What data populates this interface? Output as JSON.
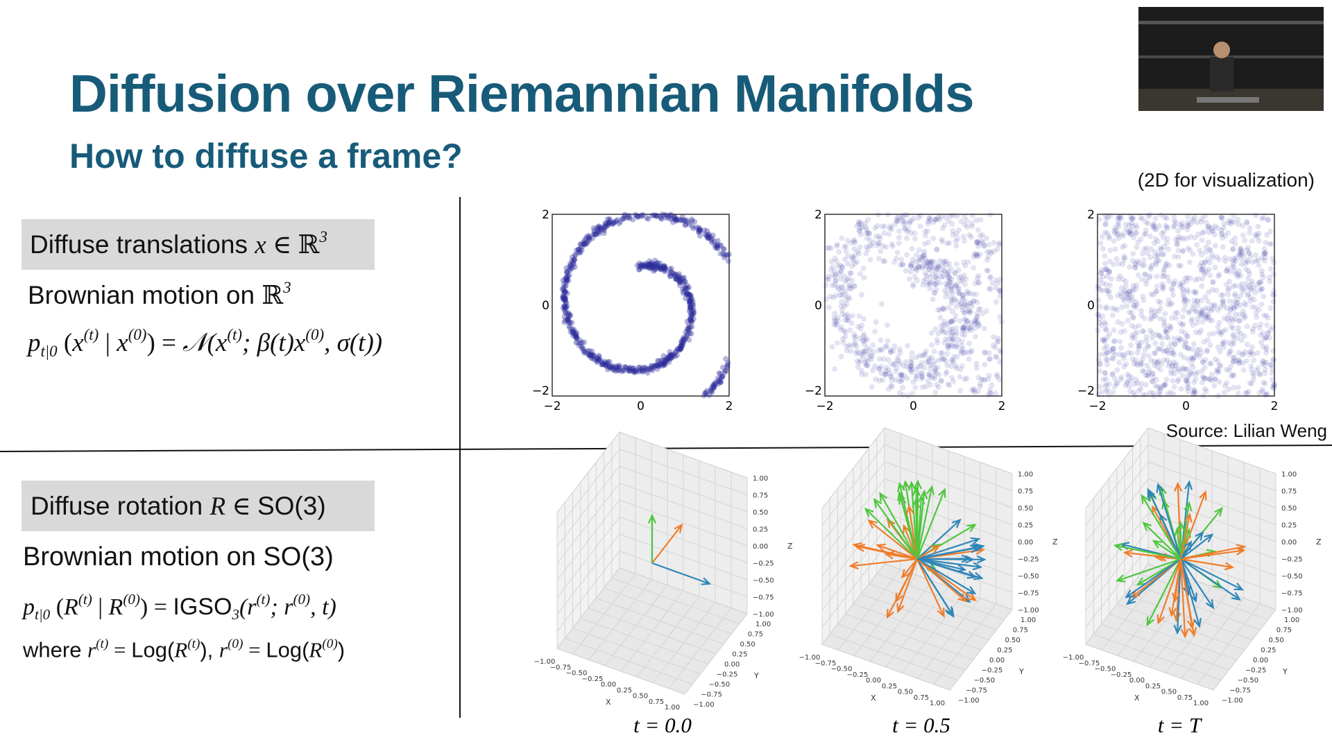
{
  "header": {
    "title": "Diffusion over Riemannian Manifolds",
    "subtitle": "How to diffuse a frame?"
  },
  "notes": {
    "visualization": "(2D for visualization)",
    "source": "Source: Lilian Weng"
  },
  "translation": {
    "box": [
      {
        "text": "Diffuse translations ",
        "style": "sans"
      },
      {
        "text": "x",
        "style": "it"
      },
      {
        "text": " ∈ ℝ",
        "style": "serif"
      },
      {
        "text": "3",
        "style": "sup"
      }
    ],
    "brownian": [
      {
        "text": "Brownian motion on ",
        "style": "sans"
      },
      {
        "text": "ℝ",
        "style": "serif"
      },
      {
        "text": "3",
        "style": "sup"
      }
    ],
    "formula": [
      {
        "text": "p",
        "style": "it"
      },
      {
        "text": "t|0",
        "style": "sub"
      },
      {
        "text": " (",
        "style": "serif"
      },
      {
        "text": "x",
        "style": "it"
      },
      {
        "text": "(t)",
        "style": "sup"
      },
      {
        "text": " | ",
        "style": "serif"
      },
      {
        "text": "x",
        "style": "it"
      },
      {
        "text": "(0)",
        "style": "sup"
      },
      {
        "text": ") = ",
        "style": "serif"
      },
      {
        "text": "𝒩(x",
        "style": "it"
      },
      {
        "text": "(t)",
        "style": "sup"
      },
      {
        "text": "; β(t)x",
        "style": "it"
      },
      {
        "text": "(0)",
        "style": "sup"
      },
      {
        "text": ", σ(t))",
        "style": "it"
      }
    ]
  },
  "rotation": {
    "box": [
      {
        "text": "Diffuse rotation ",
        "style": "sans"
      },
      {
        "text": "R",
        "style": "it"
      },
      {
        "text": " ∈ ",
        "style": "serif"
      },
      {
        "text": "SO(3)",
        "style": "sans"
      }
    ],
    "brownian": [
      {
        "text": "Brownian motion on SO(3)",
        "style": "sans"
      }
    ],
    "formula": [
      {
        "text": "p",
        "style": "it"
      },
      {
        "text": "t|0",
        "style": "sub"
      },
      {
        "text": " (",
        "style": "serif"
      },
      {
        "text": "R",
        "style": "it"
      },
      {
        "text": "(t)",
        "style": "sup"
      },
      {
        "text": " | ",
        "style": "serif"
      },
      {
        "text": "R",
        "style": "it"
      },
      {
        "text": "(0)",
        "style": "sup"
      },
      {
        "text": ") = ",
        "style": "serif"
      },
      {
        "text": "IGSO",
        "style": "sans"
      },
      {
        "text": "3",
        "style": "sub"
      },
      {
        "text": "(r",
        "style": "it"
      },
      {
        "text": "(t)",
        "style": "sup"
      },
      {
        "text": "; r",
        "style": "it"
      },
      {
        "text": "(0)",
        "style": "sup"
      },
      {
        "text": ", t)",
        "style": "it"
      }
    ],
    "where": [
      {
        "text": "where ",
        "style": "sans"
      },
      {
        "text": "r",
        "style": "it"
      },
      {
        "text": "(t)",
        "style": "sup"
      },
      {
        "text": " = ",
        "style": "serif"
      },
      {
        "text": "Log(",
        "style": "sans"
      },
      {
        "text": "R",
        "style": "it"
      },
      {
        "text": "(t)",
        "style": "sup"
      },
      {
        "text": "), ",
        "style": "sans"
      },
      {
        "text": "r",
        "style": "it"
      },
      {
        "text": "(0)",
        "style": "sup"
      },
      {
        "text": " = ",
        "style": "serif"
      },
      {
        "text": "Log(",
        "style": "sans"
      },
      {
        "text": "R",
        "style": "it"
      },
      {
        "text": "(0)",
        "style": "sup"
      },
      {
        "text": ")",
        "style": "sans"
      }
    ]
  },
  "scatter_plots": {
    "ticks": [
      "−2",
      "0",
      "2"
    ]
  },
  "frame_plots": {
    "ticks": [
      "−1.00",
      "−0.75",
      "−0.50",
      "−0.25",
      "0.00",
      "0.25",
      "0.50",
      "0.75",
      "1.00"
    ],
    "axis_labels": [
      "X",
      "Y",
      "Z"
    ],
    "captions": [
      "t = 0.0",
      "t = 0.5",
      "t = T"
    ]
  }
}
